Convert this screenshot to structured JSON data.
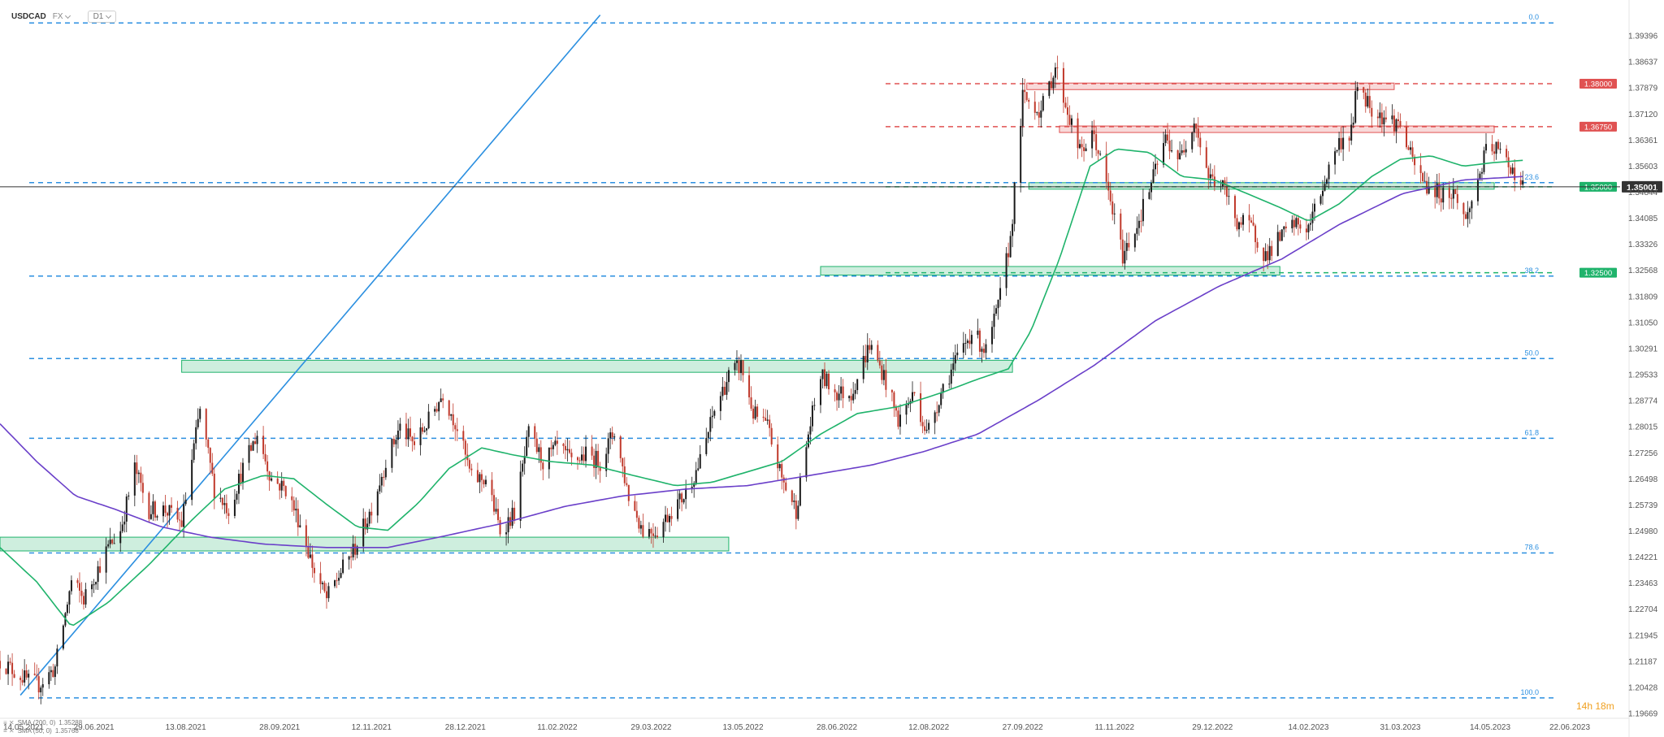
{
  "header": {
    "symbol": "USDCAD",
    "exchange": "FX",
    "timeframe": "D1"
  },
  "countdown": "14h 18m",
  "indicators": [
    {
      "label": "SMA (200, 0)",
      "value": "1.35288",
      "color": "#6a3fc9"
    },
    {
      "label": "SMA (50, 0)",
      "value": "1.35768",
      "color": "#1fb36b"
    }
  ],
  "colors": {
    "up_candle": "#1a1a1a",
    "down_candle": "#c0392b",
    "sma50": "#1fb36b",
    "sma200": "#6a3fc9",
    "fib_line": "#2b8fe0",
    "trend_line": "#2b8fe0",
    "support_zone": "#1fb36b",
    "resistance_zone": "#e05252",
    "current_price_bg": "#333333"
  },
  "chart_data": {
    "type": "candlestick",
    "instrument": "USDCAD",
    "timeframe": "D1",
    "x_start": "2021-05-14",
    "x_end": "2023-06-22",
    "ylim": [
      1.19669,
      1.40154
    ],
    "y_ticks": [
      "1.39396",
      "1.38637",
      "1.37879",
      "1.37120",
      "1.36361",
      "1.35603",
      "1.34844",
      "1.34085",
      "1.33326",
      "1.32568",
      "1.31809",
      "1.31050",
      "1.30291",
      "1.29533",
      "1.28774",
      "1.28015",
      "1.27256",
      "1.26498",
      "1.25739",
      "1.24980",
      "1.24221",
      "1.23463",
      "1.22704",
      "1.21945",
      "1.21187",
      "1.20428",
      "1.19669"
    ],
    "x_ticks": [
      "14.05.2021",
      "29.06.2021",
      "13.08.2021",
      "28.09.2021",
      "12.11.2021",
      "28.12.2021",
      "11.02.2022",
      "29.03.2022",
      "13.05.2022",
      "28.06.2022",
      "12.08.2022",
      "27.09.2022",
      "11.11.2022",
      "29.12.2022",
      "14.02.2023",
      "31.03.2023",
      "14.05.2023",
      "22.06.2023"
    ],
    "price_path": [
      [
        "2021-05-14",
        1.212
      ],
      [
        "2021-05-28",
        1.206
      ],
      [
        "2021-06-02",
        1.205
      ],
      [
        "2021-06-10",
        1.21
      ],
      [
        "2021-06-18",
        1.235
      ],
      [
        "2021-06-24",
        1.23
      ],
      [
        "2021-07-06",
        1.245
      ],
      [
        "2021-07-12",
        1.25
      ],
      [
        "2021-07-19",
        1.268
      ],
      [
        "2021-07-26",
        1.256
      ],
      [
        "2021-08-03",
        1.256
      ],
      [
        "2021-08-11",
        1.252
      ],
      [
        "2021-08-20",
        1.285
      ],
      [
        "2021-08-27",
        1.262
      ],
      [
        "2021-09-03",
        1.256
      ],
      [
        "2021-09-10",
        1.268
      ],
      [
        "2021-09-17",
        1.278
      ],
      [
        "2021-09-24",
        1.265
      ],
      [
        "2021-10-01",
        1.262
      ],
      [
        "2021-10-08",
        1.252
      ],
      [
        "2021-10-15",
        1.238
      ],
      [
        "2021-10-21",
        1.23
      ],
      [
        "2021-10-28",
        1.238
      ],
      [
        "2021-11-04",
        1.245
      ],
      [
        "2021-11-11",
        1.255
      ],
      [
        "2021-11-19",
        1.27
      ],
      [
        "2021-11-26",
        1.28
      ],
      [
        "2021-12-03",
        1.275
      ],
      [
        "2021-12-10",
        1.282
      ],
      [
        "2021-12-17",
        1.29
      ],
      [
        "2021-12-24",
        1.28
      ],
      [
        "2021-12-31",
        1.265
      ],
      [
        "2022-01-07",
        1.265
      ],
      [
        "2022-01-14",
        1.25
      ],
      [
        "2022-01-21",
        1.255
      ],
      [
        "2022-01-28",
        1.278
      ],
      [
        "2022-02-04",
        1.27
      ],
      [
        "2022-02-11",
        1.274
      ],
      [
        "2022-02-18",
        1.27
      ],
      [
        "2022-02-25",
        1.272
      ],
      [
        "2022-03-04",
        1.27
      ],
      [
        "2022-03-11",
        1.279
      ],
      [
        "2022-03-18",
        1.26
      ],
      [
        "2022-03-25",
        1.25
      ],
      [
        "2022-04-01",
        1.25
      ],
      [
        "2022-04-08",
        1.256
      ],
      [
        "2022-04-14",
        1.26
      ],
      [
        "2022-04-22",
        1.27
      ],
      [
        "2022-04-29",
        1.285
      ],
      [
        "2022-05-06",
        1.295
      ],
      [
        "2022-05-12",
        1.298
      ],
      [
        "2022-05-18",
        1.284
      ],
      [
        "2022-05-25",
        1.28
      ],
      [
        "2022-06-01",
        1.265
      ],
      [
        "2022-06-08",
        1.256
      ],
      [
        "2022-06-14",
        1.278
      ],
      [
        "2022-06-20",
        1.295
      ],
      [
        "2022-06-28",
        1.29
      ],
      [
        "2022-07-05",
        1.29
      ],
      [
        "2022-07-14",
        1.304
      ],
      [
        "2022-07-21",
        1.295
      ],
      [
        "2022-07-28",
        1.282
      ],
      [
        "2022-08-05",
        1.29
      ],
      [
        "2022-08-11",
        1.278
      ],
      [
        "2022-08-19",
        1.292
      ],
      [
        "2022-08-26",
        1.3
      ],
      [
        "2022-09-02",
        1.308
      ],
      [
        "2022-09-09",
        1.302
      ],
      [
        "2022-09-15",
        1.315
      ],
      [
        "2022-09-21",
        1.335
      ],
      [
        "2022-09-27",
        1.376
      ],
      [
        "2022-09-30",
        1.375
      ],
      [
        "2022-10-06",
        1.372
      ],
      [
        "2022-10-13",
        1.385
      ],
      [
        "2022-10-18",
        1.374
      ],
      [
        "2022-10-25",
        1.36
      ],
      [
        "2022-11-01",
        1.365
      ],
      [
        "2022-11-08",
        1.348
      ],
      [
        "2022-11-15",
        1.33
      ],
      [
        "2022-11-22",
        1.339
      ],
      [
        "2022-11-29",
        1.351
      ],
      [
        "2022-12-06",
        1.364
      ],
      [
        "2022-12-13",
        1.358
      ],
      [
        "2022-12-20",
        1.37
      ],
      [
        "2022-12-27",
        1.353
      ],
      [
        "2023-01-03",
        1.35
      ],
      [
        "2023-01-10",
        1.34
      ],
      [
        "2023-01-17",
        1.338
      ],
      [
        "2023-01-24",
        1.33
      ],
      [
        "2023-01-31",
        1.335
      ],
      [
        "2023-02-07",
        1.339
      ],
      [
        "2023-02-14",
        1.338
      ],
      [
        "2023-02-21",
        1.35
      ],
      [
        "2023-02-28",
        1.362
      ],
      [
        "2023-03-07",
        1.366
      ],
      [
        "2023-03-10",
        1.38
      ],
      [
        "2023-03-17",
        1.373
      ],
      [
        "2023-03-24",
        1.37
      ],
      [
        "2023-03-31",
        1.368
      ],
      [
        "2023-04-06",
        1.357
      ],
      [
        "2023-04-13",
        1.35
      ],
      [
        "2023-04-20",
        1.348
      ],
      [
        "2023-04-27",
        1.348
      ],
      [
        "2023-05-02",
        1.34
      ],
      [
        "2023-05-08",
        1.352
      ],
      [
        "2023-05-12",
        1.36
      ],
      [
        "2023-05-17",
        1.361
      ],
      [
        "2023-05-24",
        1.356
      ],
      [
        "2023-05-26",
        1.354
      ],
      [
        "2023-05-30",
        1.35
      ]
    ],
    "sma50_path": [
      [
        "2021-05-14",
        1.245
      ],
      [
        "2021-06-01",
        1.235
      ],
      [
        "2021-06-18",
        1.222
      ],
      [
        "2021-07-06",
        1.229
      ],
      [
        "2021-07-26",
        1.24
      ],
      [
        "2021-08-16",
        1.253
      ],
      [
        "2021-09-01",
        1.262
      ],
      [
        "2021-09-20",
        1.266
      ],
      [
        "2021-10-05",
        1.265
      ],
      [
        "2021-10-20",
        1.258
      ],
      [
        "2021-11-05",
        1.251
      ],
      [
        "2021-11-20",
        1.25
      ],
      [
        "2021-12-05",
        1.258
      ],
      [
        "2021-12-20",
        1.268
      ],
      [
        "2022-01-05",
        1.274
      ],
      [
        "2022-01-20",
        1.272
      ],
      [
        "2022-02-08",
        1.27
      ],
      [
        "2022-02-28",
        1.269
      ],
      [
        "2022-03-20",
        1.266
      ],
      [
        "2022-04-10",
        1.263
      ],
      [
        "2022-04-28",
        1.264
      ],
      [
        "2022-05-15",
        1.267
      ],
      [
        "2022-06-01",
        1.27
      ],
      [
        "2022-06-20",
        1.278
      ],
      [
        "2022-07-08",
        1.284
      ],
      [
        "2022-07-28",
        1.286
      ],
      [
        "2022-08-18",
        1.29
      ],
      [
        "2022-09-05",
        1.294
      ],
      [
        "2022-09-20",
        1.297
      ],
      [
        "2022-10-01",
        1.308
      ],
      [
        "2022-10-15",
        1.329
      ],
      [
        "2022-10-30",
        1.356
      ],
      [
        "2022-11-12",
        1.361
      ],
      [
        "2022-11-28",
        1.36
      ],
      [
        "2022-12-14",
        1.353
      ],
      [
        "2022-12-30",
        1.352
      ],
      [
        "2023-01-15",
        1.348
      ],
      [
        "2023-01-31",
        1.344
      ],
      [
        "2023-02-14",
        1.34
      ],
      [
        "2023-03-01",
        1.345
      ],
      [
        "2023-03-17",
        1.353
      ],
      [
        "2023-03-31",
        1.358
      ],
      [
        "2023-04-15",
        1.359
      ],
      [
        "2023-05-01",
        1.356
      ],
      [
        "2023-05-15",
        1.357
      ],
      [
        "2023-05-30",
        1.3577
      ]
    ],
    "sma200_path": [
      [
        "2021-05-14",
        1.281
      ],
      [
        "2021-06-01",
        1.27
      ],
      [
        "2021-06-20",
        1.26
      ],
      [
        "2021-07-10",
        1.256
      ],
      [
        "2021-08-01",
        1.251
      ],
      [
        "2021-08-25",
        1.248
      ],
      [
        "2021-09-20",
        1.246
      ],
      [
        "2021-10-20",
        1.245
      ],
      [
        "2021-11-20",
        1.245
      ],
      [
        "2021-12-15",
        1.248
      ],
      [
        "2022-01-15",
        1.252
      ],
      [
        "2022-02-15",
        1.257
      ],
      [
        "2022-03-15",
        1.26
      ],
      [
        "2022-04-15",
        1.262
      ],
      [
        "2022-05-15",
        1.263
      ],
      [
        "2022-06-15",
        1.266
      ],
      [
        "2022-07-15",
        1.269
      ],
      [
        "2022-08-10",
        1.273
      ],
      [
        "2022-09-05",
        1.278
      ],
      [
        "2022-10-05",
        1.288
      ],
      [
        "2022-11-01",
        1.298
      ],
      [
        "2022-12-01",
        1.311
      ],
      [
        "2023-01-01",
        1.321
      ],
      [
        "2023-02-01",
        1.329
      ],
      [
        "2023-03-01",
        1.339
      ],
      [
        "2023-04-01",
        1.348
      ],
      [
        "2023-05-01",
        1.352
      ],
      [
        "2023-05-30",
        1.353
      ]
    ],
    "current_price": "1.35001",
    "price_levels": [
      {
        "label": "1.38000",
        "value": 1.38,
        "color": "#e05252"
      },
      {
        "label": "1.36750",
        "value": 1.3675,
        "color": "#e05252"
      },
      {
        "label": "1.35000",
        "value": 1.35,
        "color": "#1fb36b"
      },
      {
        "label": "1.32500",
        "value": 1.325,
        "color": "#1fb36b"
      }
    ],
    "fib_levels": [
      {
        "label": "0.0",
        "value": 1.3977
      },
      {
        "label": "23.6",
        "value": 1.3512
      },
      {
        "label": "38.2",
        "value": 1.324
      },
      {
        "label": "50.0",
        "value": 1.3
      },
      {
        "label": "61.8",
        "value": 1.2768
      },
      {
        "label": "78.6",
        "value": 1.2434
      },
      {
        "label": "100.0",
        "value": 1.2012
      }
    ],
    "zones": [
      {
        "type": "support",
        "from": "2021-05-14",
        "to": "2022-05-06",
        "low": 1.244,
        "high": 1.248
      },
      {
        "type": "support",
        "from": "2021-08-11",
        "to": "2022-09-22",
        "low": 1.296,
        "high": 1.2995
      },
      {
        "type": "support",
        "from": "2022-06-20",
        "to": "2023-01-31",
        "low": 1.3243,
        "high": 1.3268
      },
      {
        "type": "support",
        "from": "2022-09-30",
        "to": "2023-05-16",
        "low": 1.3494,
        "high": 1.3512
      },
      {
        "type": "resistance",
        "from": "2022-09-29",
        "to": "2023-03-28",
        "low": 1.3783,
        "high": 1.3802
      },
      {
        "type": "resistance",
        "from": "2022-10-15",
        "to": "2023-05-16",
        "low": 1.366,
        "high": 1.3677
      }
    ],
    "trend_line": {
      "from": [
        "2021-05-24",
        1.202
      ],
      "to": [
        "2022-03-04",
        1.4
      ]
    }
  }
}
